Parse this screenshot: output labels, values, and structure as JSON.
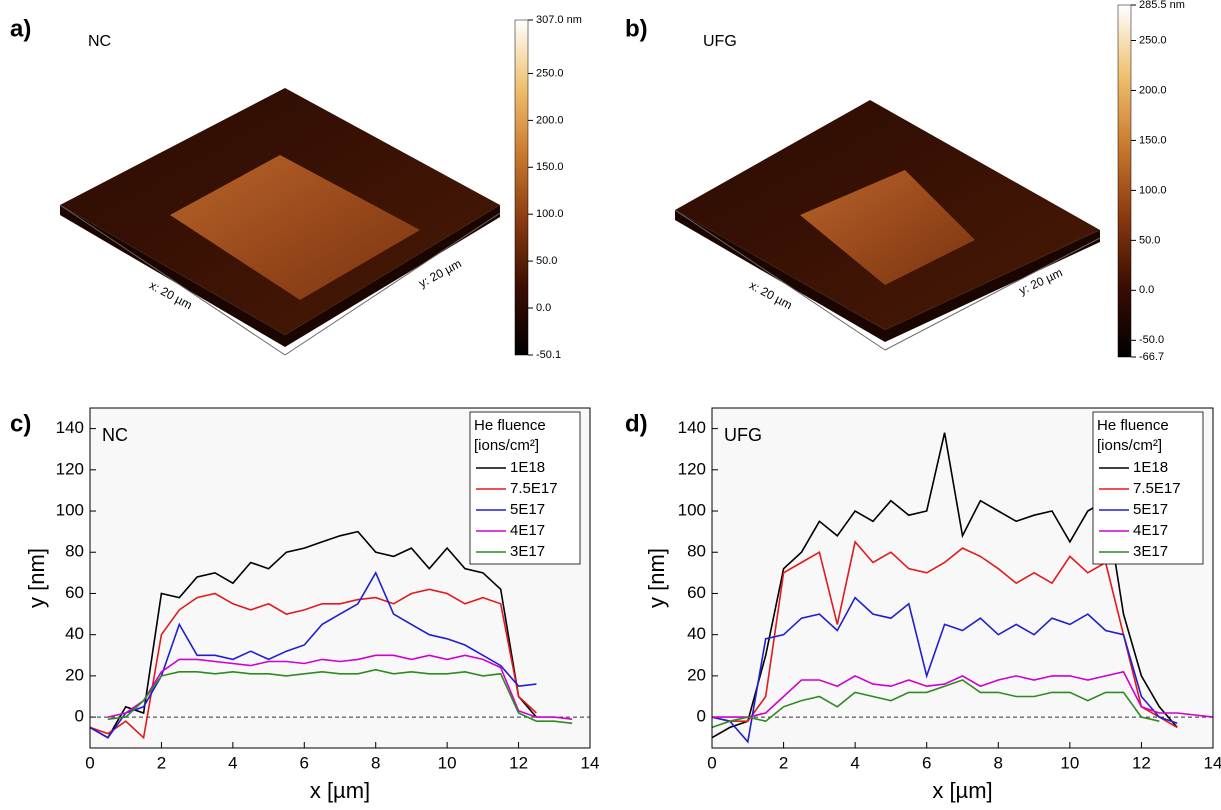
{
  "chart_data": [
    {
      "type": "surface",
      "panel_label": "a)",
      "title": "NC",
      "x_axis_label": "x: 20 µm",
      "y_axis_label": "y: 20 µm",
      "colorbar_lim": [
        -50.1,
        307.0
      ],
      "colorbar_ticks": [
        {
          "value": 307.0,
          "label": "307.0 nm"
        },
        {
          "value": 250,
          "label": "250.0"
        },
        {
          "value": 200,
          "label": "200.0"
        },
        {
          "value": 150,
          "label": "150.0"
        },
        {
          "value": 100,
          "label": "100.0"
        },
        {
          "value": 50,
          "label": "50.0"
        },
        {
          "value": 0,
          "label": "0.0"
        },
        {
          "value": -50.1,
          "label": "-50.1"
        }
      ],
      "colors": [
        "#000000",
        "#3a0d02",
        "#8a3a10",
        "#c97a2e",
        "#f0c070",
        "#ffffff"
      ]
    },
    {
      "type": "surface",
      "panel_label": "b)",
      "title": "UFG",
      "x_axis_label": "x: 20 µm",
      "y_axis_label": "y: 20 µm",
      "colorbar_lim": [
        -66.7,
        285.5
      ],
      "colorbar_ticks": [
        {
          "value": 285.5,
          "label": "285.5 nm"
        },
        {
          "value": 250,
          "label": "250.0"
        },
        {
          "value": 200,
          "label": "200.0"
        },
        {
          "value": 150,
          "label": "150.0"
        },
        {
          "value": 100,
          "label": "100.0"
        },
        {
          "value": 50,
          "label": "50.0"
        },
        {
          "value": 0,
          "label": "0.0"
        },
        {
          "value": -50,
          "label": "-50.0"
        },
        {
          "value": -66.7,
          "label": "-66.7"
        }
      ],
      "colors": [
        "#000000",
        "#3a0d02",
        "#8a3a10",
        "#c97a2e",
        "#f0c070",
        "#ffffff"
      ]
    },
    {
      "type": "line",
      "panel_label": "c)",
      "title": "NC",
      "x_label": "x [µm]",
      "y_label": "y [nm]",
      "xlim": [
        0,
        14
      ],
      "ylim": [
        -15,
        150
      ],
      "xticks": [
        0,
        2,
        4,
        6,
        8,
        10,
        12,
        14
      ],
      "yticks": [
        0,
        20,
        40,
        60,
        80,
        100,
        120,
        140
      ],
      "reference_line": 0,
      "legend_title": [
        "He fluence",
        "[ions/cm²]"
      ],
      "legend": "upper right",
      "series": [
        {
          "name": "1E18",
          "color": "#000000",
          "x": [
            0,
            0.5,
            1,
            1.5,
            2,
            2.5,
            3,
            3.5,
            4,
            4.5,
            5,
            5.5,
            6,
            6.5,
            7,
            7.5,
            8,
            8.5,
            9,
            9.5,
            10,
            10.5,
            11,
            11.5,
            12,
            12.5
          ],
          "values": [
            -5,
            -10,
            5,
            2,
            60,
            58,
            68,
            70,
            65,
            75,
            72,
            80,
            82,
            85,
            88,
            90,
            80,
            78,
            82,
            72,
            82,
            72,
            70,
            62,
            10,
            0
          ]
        },
        {
          "name": "7.5E17",
          "color": "#e31a1c",
          "x": [
            0,
            0.5,
            1,
            1.5,
            2,
            2.5,
            3,
            3.5,
            4,
            4.5,
            5,
            5.5,
            6,
            6.5,
            7,
            7.5,
            8,
            8.5,
            9,
            9.5,
            10,
            10.5,
            11,
            11.5,
            12,
            12.5
          ],
          "values": [
            -5,
            -8,
            -2,
            -10,
            40,
            52,
            58,
            60,
            55,
            52,
            55,
            50,
            52,
            55,
            55,
            57,
            58,
            55,
            60,
            62,
            60,
            55,
            58,
            55,
            10,
            2
          ]
        },
        {
          "name": "5E17",
          "color": "#1f1fd0",
          "x": [
            0,
            0.5,
            1,
            1.5,
            2,
            2.5,
            3,
            3.5,
            4,
            4.5,
            5,
            5.5,
            6,
            6.5,
            7,
            7.5,
            8,
            8.5,
            9,
            9.5,
            10,
            10.5,
            11,
            11.5,
            12,
            12.5
          ],
          "values": [
            -5,
            -10,
            2,
            5,
            20,
            45,
            30,
            30,
            28,
            32,
            28,
            32,
            35,
            45,
            50,
            55,
            70,
            50,
            45,
            40,
            38,
            35,
            30,
            25,
            15,
            16
          ]
        },
        {
          "name": "4E17",
          "color": "#d000d0",
          "x": [
            0.5,
            1,
            1.5,
            2,
            2.5,
            3,
            3.5,
            4,
            4.5,
            5,
            5.5,
            6,
            6.5,
            7,
            7.5,
            8,
            8.5,
            9,
            9.5,
            10,
            10.5,
            11,
            11.5,
            12,
            12.5,
            13,
            13.5
          ],
          "values": [
            0,
            2,
            8,
            22,
            28,
            28,
            27,
            26,
            25,
            27,
            27,
            26,
            28,
            27,
            28,
            30,
            30,
            28,
            30,
            28,
            30,
            28,
            24,
            3,
            0,
            0,
            -1
          ]
        },
        {
          "name": "3E17",
          "color": "#2e8b22",
          "x": [
            0.5,
            1,
            1.5,
            2,
            2.5,
            3,
            3.5,
            4,
            4.5,
            5,
            5.5,
            6,
            6.5,
            7,
            7.5,
            8,
            8.5,
            9,
            9.5,
            10,
            10.5,
            11,
            11.5,
            12,
            12.5,
            13,
            13.5
          ],
          "values": [
            -1,
            0,
            8,
            20,
            22,
            22,
            21,
            22,
            21,
            21,
            20,
            21,
            22,
            21,
            21,
            23,
            21,
            22,
            21,
            21,
            22,
            20,
            21,
            2,
            -2,
            -2,
            -3
          ]
        }
      ]
    },
    {
      "type": "line",
      "panel_label": "d)",
      "title": "UFG",
      "x_label": "x [µm]",
      "y_label": "y [nm]",
      "xlim": [
        0,
        14
      ],
      "ylim": [
        -15,
        150
      ],
      "xticks": [
        0,
        2,
        4,
        6,
        8,
        10,
        12,
        14
      ],
      "yticks": [
        0,
        20,
        40,
        60,
        80,
        100,
        120,
        140
      ],
      "reference_line": 0,
      "legend_title": [
        "He fluence",
        "[ions/cm²]"
      ],
      "legend": "upper right",
      "series": [
        {
          "name": "1E18",
          "color": "#000000",
          "x": [
            0,
            0.5,
            1,
            1.5,
            2,
            2.5,
            3,
            3.5,
            4,
            4.5,
            5,
            5.5,
            6,
            6.5,
            7,
            7.5,
            8,
            8.5,
            9,
            9.5,
            10,
            10.5,
            11,
            11.5,
            12,
            12.5,
            13
          ],
          "values": [
            -10,
            -5,
            -2,
            30,
            72,
            80,
            95,
            88,
            100,
            95,
            105,
            98,
            100,
            138,
            88,
            105,
            100,
            95,
            98,
            100,
            85,
            100,
            105,
            50,
            20,
            5,
            -5
          ]
        },
        {
          "name": "7.5E17",
          "color": "#e31a1c",
          "x": [
            0,
            0.5,
            1,
            1.5,
            2,
            2.5,
            3,
            3.5,
            4,
            4.5,
            5,
            5.5,
            6,
            6.5,
            7,
            7.5,
            8,
            8.5,
            9,
            9.5,
            10,
            10.5,
            11,
            11.5,
            12,
            12.5,
            13
          ],
          "values": [
            0,
            -2,
            -2,
            10,
            70,
            75,
            80,
            45,
            85,
            75,
            80,
            72,
            70,
            75,
            82,
            78,
            72,
            65,
            70,
            65,
            78,
            70,
            75,
            40,
            5,
            0,
            -5
          ]
        },
        {
          "name": "5E17",
          "color": "#1f1fd0",
          "x": [
            0,
            0.5,
            1,
            1.5,
            2,
            2.5,
            3,
            3.5,
            4,
            4.5,
            5,
            5.5,
            6,
            6.5,
            7,
            7.5,
            8,
            8.5,
            9,
            9.5,
            10,
            10.5,
            11,
            11.5,
            12,
            12.5,
            13
          ],
          "values": [
            0,
            -2,
            -12,
            38,
            40,
            48,
            50,
            42,
            58,
            50,
            48,
            55,
            20,
            45,
            42,
            48,
            40,
            45,
            40,
            48,
            45,
            50,
            42,
            40,
            10,
            0,
            -3
          ]
        },
        {
          "name": "4E17",
          "color": "#d000d0",
          "x": [
            0,
            0.5,
            1,
            1.5,
            2,
            2.5,
            3,
            3.5,
            4,
            4.5,
            5,
            5.5,
            6,
            6.5,
            7,
            7.5,
            8,
            8.5,
            9,
            9.5,
            10,
            10.5,
            11,
            11.5,
            12,
            12.5,
            13,
            13.5,
            14
          ],
          "values": [
            0,
            0,
            0,
            2,
            10,
            18,
            18,
            15,
            20,
            16,
            15,
            18,
            15,
            16,
            20,
            15,
            18,
            20,
            18,
            20,
            20,
            18,
            20,
            22,
            5,
            2,
            2,
            1,
            0
          ]
        },
        {
          "name": "3E17",
          "color": "#2e8b22",
          "x": [
            0,
            0.5,
            1,
            1.5,
            2,
            2.5,
            3,
            3.5,
            4,
            4.5,
            5,
            5.5,
            6,
            6.5,
            7,
            7.5,
            8,
            8.5,
            9,
            9.5,
            10,
            10.5,
            11,
            11.5,
            12,
            12.5
          ],
          "values": [
            -5,
            -2,
            0,
            -2,
            5,
            8,
            10,
            5,
            12,
            10,
            8,
            12,
            12,
            15,
            18,
            12,
            12,
            10,
            10,
            12,
            12,
            8,
            12,
            12,
            0,
            -2
          ]
        }
      ]
    }
  ]
}
